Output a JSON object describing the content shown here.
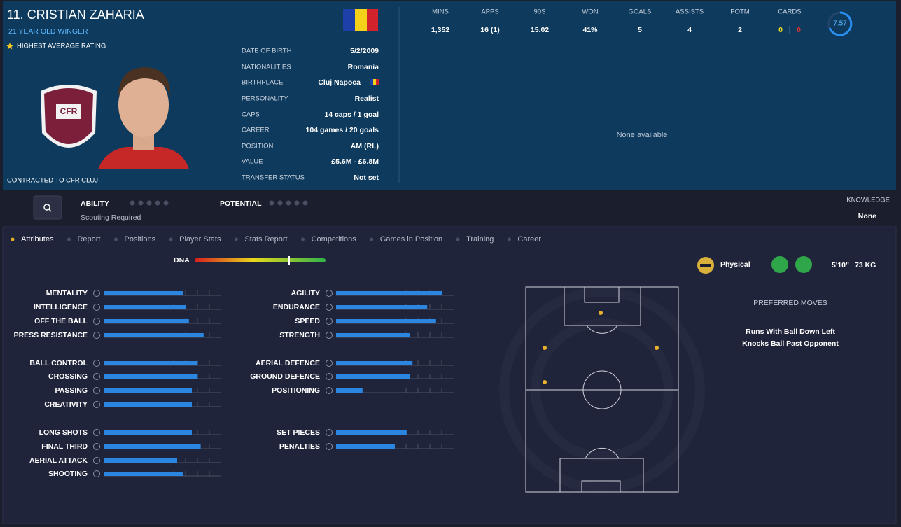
{
  "header": {
    "name": "11. CRISTIAN ZAHARIA",
    "subtitle": "21 YEAR OLD WINGER",
    "badge": "HIGHEST AVERAGE RATING",
    "contract": "CONTRACTED TO CFR CLUJ"
  },
  "details": [
    {
      "label": "DATE OF BIRTH",
      "value": "5/2/2009"
    },
    {
      "label": "NATIONALITIES",
      "value": "Romania"
    },
    {
      "label": "BIRTHPLACE",
      "value": "Cluj Napoca"
    },
    {
      "label": "PERSONALITY",
      "value": "Realist"
    },
    {
      "label": "CAPS",
      "value": "14 caps / 1 goal"
    },
    {
      "label": "CAREER",
      "value": "104 games / 20 goals"
    },
    {
      "label": "POSITION",
      "value": "AM (RL)"
    },
    {
      "label": "VALUE",
      "value": "£5.6M - £6.8M"
    },
    {
      "label": "TRANSFER STATUS",
      "value": "Not set"
    }
  ],
  "stats": {
    "columns": [
      {
        "label": "MINS",
        "value": "1,352"
      },
      {
        "label": "APPS",
        "value": "16 (1)"
      },
      {
        "label": "90S",
        "value": "15.02"
      },
      {
        "label": "WON",
        "value": "41%"
      },
      {
        "label": "GOALS",
        "value": "5"
      },
      {
        "label": "ASSISTS",
        "value": "4"
      },
      {
        "label": "POTM",
        "value": "2"
      }
    ],
    "cards": {
      "label": "CARDS",
      "yellow": "0",
      "red": "0"
    },
    "rating": "7.57",
    "empty": "None available"
  },
  "ability": {
    "ability_label": "ABILITY",
    "ability_note": "Scouting Required",
    "potential_label": "POTENTIAL",
    "knowledge_label": "KNOWLEDGE",
    "knowledge_value": "None"
  },
  "tabs": [
    "Attributes",
    "Report",
    "Positions",
    "Player Stats",
    "Stats Report",
    "Competitions",
    "Games in Position",
    "Training",
    "Career"
  ],
  "dna_label": "DNA",
  "profile": {
    "type": "Physical",
    "height": "5'10\"",
    "weight": "73 KG"
  },
  "preferred_moves": {
    "title": "PREFERRED MOVES",
    "moves": [
      "Runs With Ball Down Left",
      "Knocks Ball Past Opponent"
    ]
  },
  "attributes": {
    "scale": [
      0,
      20
    ],
    "columns": [
      [
        [
          {
            "name": "MENTALITY",
            "value": 13.5
          },
          {
            "name": "INTELLIGENCE",
            "value": 14
          },
          {
            "name": "OFF THE BALL",
            "value": 14.5
          },
          {
            "name": "PRESS RESISTANCE",
            "value": 17
          }
        ],
        [
          {
            "name": "BALL CONTROL",
            "value": 16
          },
          {
            "name": "CROSSING",
            "value": 16
          },
          {
            "name": "PASSING",
            "value": 15
          },
          {
            "name": "CREATIVITY",
            "value": 15
          }
        ],
        [
          {
            "name": "LONG SHOTS",
            "value": 15
          },
          {
            "name": "FINAL THIRD",
            "value": 16.5
          },
          {
            "name": "AERIAL ATTACK",
            "value": 12.5
          },
          {
            "name": "SHOOTING",
            "value": 13.5
          }
        ]
      ],
      [
        [
          {
            "name": "AGILITY",
            "value": 18
          },
          {
            "name": "ENDURANCE",
            "value": 15.5
          },
          {
            "name": "SPEED",
            "value": 17
          },
          {
            "name": "STRENGTH",
            "value": 12.5
          }
        ],
        [
          {
            "name": "AERIAL DEFENCE",
            "value": 13
          },
          {
            "name": "GROUND DEFENCE",
            "value": 12.5
          },
          {
            "name": "POSITIONING",
            "value": 4.5
          }
        ],
        [
          {
            "name": "SET PIECES",
            "value": 12
          },
          {
            "name": "PENALTIES",
            "value": 10
          }
        ]
      ]
    ]
  }
}
